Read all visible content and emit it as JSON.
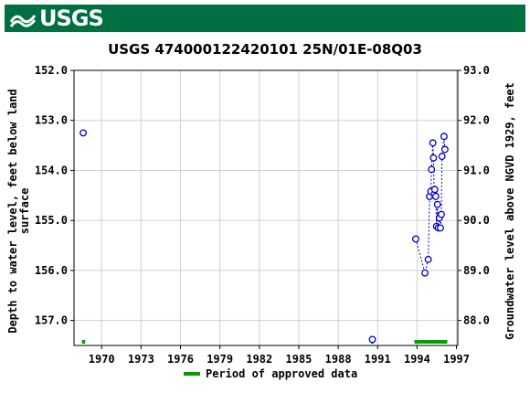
{
  "header": {
    "logo_text": "USGS",
    "brand_color": "#006f41",
    "logo_icon": "usgs-wave-icon"
  },
  "chart_data": {
    "type": "scatter",
    "title": "USGS 474000122420101 25N/01E-08Q03",
    "ylabel_left_lines": [
      "Depth to water level, feet below land",
      "surface"
    ],
    "ylabel_right": "Groundwater level above NGVD 1929, feet",
    "x_tick_labels": [
      "1970",
      "1973",
      "1976",
      "1979",
      "1982",
      "1985",
      "1988",
      "1991",
      "1994",
      "1997"
    ],
    "x_ticks": [
      1970,
      1973,
      1976,
      1979,
      1982,
      1985,
      1988,
      1991,
      1994,
      1997
    ],
    "xlim": [
      1967.9,
      1997.1
    ],
    "y_left_tick_labels": [
      "152.0",
      "153.0",
      "154.0",
      "155.0",
      "156.0",
      "157.0"
    ],
    "y_left_ticks": [
      152,
      153,
      154,
      155,
      156,
      157
    ],
    "y_left_lim": [
      152.0,
      157.5
    ],
    "y_left_inverted": true,
    "y_right_tick_labels": [
      "93.0",
      "92.0",
      "91.0",
      "90.0",
      "89.0",
      "88.0"
    ],
    "y_right_ticks": [
      93,
      92,
      91,
      90,
      89,
      88
    ],
    "grid": true,
    "marker_color": "#0000cc",
    "approved_color": "#00a000",
    "points": [
      {
        "x": 1968.6,
        "y": 153.25,
        "connect": false
      },
      {
        "x": 1990.6,
        "y": 157.38,
        "connect": false
      },
      {
        "x": 1993.9,
        "y": 155.37,
        "connect": true
      },
      {
        "x": 1994.6,
        "y": 156.05,
        "connect": true
      },
      {
        "x": 1994.85,
        "y": 155.78,
        "connect": true
      },
      {
        "x": 1994.95,
        "y": 154.52,
        "connect": true
      },
      {
        "x": 1995.05,
        "y": 154.42,
        "connect": true
      },
      {
        "x": 1995.1,
        "y": 153.98,
        "connect": true
      },
      {
        "x": 1995.2,
        "y": 153.45,
        "connect": true
      },
      {
        "x": 1995.25,
        "y": 153.75,
        "connect": true
      },
      {
        "x": 1995.3,
        "y": 154.48,
        "connect": true
      },
      {
        "x": 1995.35,
        "y": 154.38,
        "connect": true
      },
      {
        "x": 1995.42,
        "y": 154.52,
        "connect": true
      },
      {
        "x": 1995.48,
        "y": 155.12,
        "connect": true
      },
      {
        "x": 1995.55,
        "y": 154.68,
        "connect": true
      },
      {
        "x": 1995.62,
        "y": 155.15,
        "connect": true
      },
      {
        "x": 1995.7,
        "y": 154.95,
        "connect": true
      },
      {
        "x": 1995.78,
        "y": 155.15,
        "connect": true
      },
      {
        "x": 1995.85,
        "y": 154.88,
        "connect": true
      },
      {
        "x": 1995.9,
        "y": 153.72,
        "connect": true
      },
      {
        "x": 1996.05,
        "y": 153.32,
        "connect": true
      },
      {
        "x": 1996.12,
        "y": 153.58,
        "connect": true
      }
    ],
    "approved_periods": [
      {
        "start": 1968.5,
        "end": 1968.75
      },
      {
        "start": 1990.5,
        "end": 1990.7
      },
      {
        "start": 1993.8,
        "end": 1996.3
      }
    ],
    "legend": {
      "label": "Period of approved data",
      "position": "bottom"
    }
  }
}
